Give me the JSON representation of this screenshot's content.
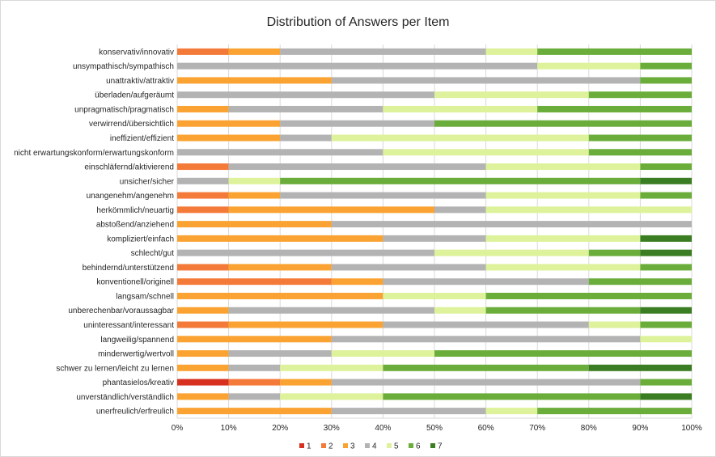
{
  "chart_data": {
    "type": "bar",
    "orientation": "horizontal",
    "stacked": "percent",
    "title": "Distribution of Answers per Item",
    "xlabel": "",
    "ylabel": "",
    "xlim": [
      0,
      100
    ],
    "x_ticks": [
      "0%",
      "10%",
      "20%",
      "30%",
      "40%",
      "50%",
      "60%",
      "70%",
      "80%",
      "90%",
      "100%"
    ],
    "grid": "vertical",
    "legend_position": "bottom",
    "categories": [
      "konservativ/innovativ",
      "unsympathisch/sympathisch",
      "unattraktiv/attraktiv",
      "überladen/aufgeräumt",
      "unpragmatisch/pragmatisch",
      "verwirrend/übersichtlich",
      "ineffizient/effizient",
      "nicht erwartungskonform/erwartungskonform",
      "einschläfernd/aktivierend",
      "unsicher/sicher",
      "unangenehm/angenehm",
      "herkömmlich/neuartig",
      "abstoßend/anziehend",
      "kompliziert/einfach",
      "schlecht/gut",
      "behindernd/unterstützend",
      "konventionell/originell",
      "langsam/schnell",
      "unberechenbar/voraussagbar",
      "uninteressant/interessant",
      "langweilig/spannend",
      "minderwertig/wertvoll",
      "schwer zu lernen/leicht zu lernen",
      "phantasielos/kreativ",
      "unverständlich/verständlich",
      "unerfreulich/erfreulich"
    ],
    "series": [
      {
        "name": "1",
        "color": "#d7301f",
        "values": [
          0,
          0,
          0,
          0,
          0,
          0,
          0,
          0,
          0,
          0,
          0,
          0,
          0,
          0,
          0,
          0,
          0,
          0,
          0,
          0,
          0,
          0,
          0,
          10,
          0,
          0
        ]
      },
      {
        "name": "2",
        "color": "#f47a3a",
        "values": [
          10,
          0,
          0,
          0,
          0,
          0,
          0,
          0,
          10,
          0,
          10,
          10,
          0,
          0,
          0,
          10,
          30,
          0,
          0,
          10,
          0,
          0,
          0,
          10,
          0,
          0
        ]
      },
      {
        "name": "3",
        "color": "#faa332",
        "values": [
          10,
          0,
          30,
          0,
          10,
          20,
          20,
          0,
          0,
          0,
          10,
          40,
          30,
          40,
          0,
          20,
          10,
          40,
          10,
          30,
          30,
          10,
          10,
          10,
          10,
          30
        ]
      },
      {
        "name": "4",
        "color": "#b3b3b3",
        "values": [
          40,
          70,
          60,
          50,
          30,
          30,
          10,
          40,
          50,
          10,
          40,
          10,
          70,
          20,
          50,
          30,
          40,
          0,
          40,
          40,
          60,
          20,
          10,
          60,
          10,
          30
        ]
      },
      {
        "name": "5",
        "color": "#ddf29a",
        "values": [
          10,
          20,
          0,
          30,
          30,
          0,
          50,
          40,
          30,
          10,
          30,
          40,
          0,
          30,
          30,
          30,
          0,
          20,
          10,
          10,
          10,
          20,
          20,
          0,
          20,
          10
        ]
      },
      {
        "name": "6",
        "color": "#6aad3a",
        "values": [
          30,
          10,
          10,
          20,
          30,
          50,
          20,
          20,
          10,
          70,
          10,
          0,
          0,
          0,
          10,
          10,
          20,
          40,
          30,
          10,
          0,
          50,
          40,
          10,
          50,
          30
        ]
      },
      {
        "name": "7",
        "color": "#3a7d22",
        "values": [
          0,
          0,
          0,
          0,
          0,
          0,
          0,
          0,
          0,
          10,
          0,
          0,
          0,
          10,
          10,
          0,
          0,
          0,
          10,
          0,
          0,
          0,
          20,
          0,
          10,
          0
        ]
      }
    ]
  }
}
